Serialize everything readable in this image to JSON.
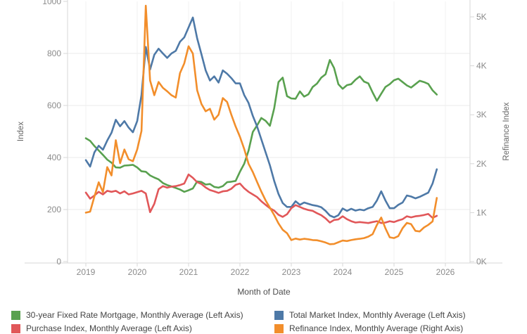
{
  "chart_data": {
    "type": "line",
    "title": "",
    "xlabel": "Month of Date",
    "x_start": "2019-01",
    "x_end": "2025-11",
    "x_interval": "monthly",
    "x_ticks": [
      "2019",
      "2020",
      "2021",
      "2022",
      "2023",
      "2024",
      "2025",
      "2026"
    ],
    "grid": true,
    "legend_position": "bottom",
    "left_axis": {
      "label": "Index",
      "range": [
        0,
        1000
      ],
      "ticks": [
        "0",
        "200",
        "400",
        "600",
        "800",
        "1000"
      ],
      "tick_values": [
        0,
        200,
        400,
        600,
        800,
        1000
      ]
    },
    "right_axis": {
      "label": "Refinance Index",
      "range": [
        0,
        5316
      ],
      "ticks": [
        "0K",
        "1K",
        "2K",
        "3K",
        "4K",
        "5K"
      ],
      "tick_values": [
        0,
        1000,
        2000,
        3000,
        4000,
        5000
      ]
    },
    "series": [
      {
        "name": "30-year Fixed Rate Mortgage, Monthly Average (Left Axis)",
        "color": "#59A14F",
        "axis": "left",
        "values": [
          474,
          464,
          444,
          427,
          410,
          392,
          380,
          362,
          361,
          369,
          370,
          372,
          362,
          347,
          345,
          331,
          323,
          316,
          302,
          294,
          289,
          283,
          277,
          268,
          274,
          281,
          308,
          306,
          296,
          298,
          287,
          284,
          290,
          305,
          307,
          310,
          345,
          376,
          426,
          498,
          523,
          552,
          541,
          522,
          589,
          690,
          707,
          636,
          627,
          626,
          654,
          634,
          643,
          671,
          684,
          707,
          720,
          775,
          744,
          682,
          664,
          678,
          682,
          699,
          712,
          692,
          685,
          650,
          618,
          645,
          671,
          682,
          697,
          703,
          690,
          677,
          669,
          682,
          695,
          690,
          683,
          658,
          642
        ]
      },
      {
        "name": "Total Market Index, Monthly Average (Left Axis)",
        "color": "#4E79A7",
        "axis": "left",
        "values": [
          390,
          365,
          420,
          445,
          430,
          465,
          495,
          545,
          520,
          540,
          515,
          497,
          540,
          640,
          825,
          738,
          795,
          818,
          800,
          783,
          800,
          810,
          845,
          862,
          900,
          938,
          858,
          797,
          735,
          696,
          712,
          688,
          735,
          722,
          705,
          685,
          685,
          640,
          610,
          560,
          520,
          470,
          420,
          370,
          310,
          260,
          225,
          210,
          210,
          232,
          218,
          227,
          222,
          217,
          214,
          209,
          195,
          177,
          170,
          178,
          204,
          195,
          203,
          196,
          200,
          197,
          205,
          210,
          235,
          270,
          235,
          205,
          205,
          218,
          227,
          254,
          250,
          243,
          249,
          257,
          265,
          300,
          355
        ]
      },
      {
        "name": "Purchase Index, Monthly Average (Left Axis)",
        "color": "#E15759",
        "axis": "left",
        "values": [
          265,
          242,
          254,
          268,
          258,
          272,
          268,
          272,
          262,
          270,
          258,
          262,
          267,
          272,
          262,
          190,
          222,
          278,
          290,
          284,
          288,
          290,
          294,
          300,
          335,
          322,
          305,
          298,
          285,
          275,
          270,
          264,
          270,
          272,
          280,
          295,
          300,
          282,
          268,
          258,
          248,
          232,
          218,
          205,
          196,
          180,
          172,
          182,
          205,
          217,
          210,
          203,
          198,
          195,
          186,
          178,
          166,
          150,
          160,
          162,
          174,
          163,
          155,
          150,
          152,
          150,
          148,
          152,
          155,
          148,
          150,
          155,
          152,
          158,
          163,
          174,
          170,
          174,
          176,
          179,
          183,
          168,
          176
        ]
      },
      {
        "name": "Refinance Index, Monthly Average (Right Axis)",
        "color": "#F28E2B",
        "axis": "right",
        "values": [
          1000,
          1020,
          1330,
          1620,
          1420,
          1930,
          1760,
          2480,
          2010,
          2290,
          2090,
          2050,
          2290,
          2670,
          5230,
          3700,
          3400,
          3670,
          3550,
          3480,
          3400,
          3350,
          3850,
          4050,
          4400,
          4250,
          3500,
          3220,
          3070,
          3120,
          2900,
          3000,
          3340,
          3260,
          3000,
          2760,
          2550,
          2300,
          2000,
          1830,
          1630,
          1430,
          1250,
          1100,
          950,
          780,
          650,
          580,
          440,
          470,
          450,
          465,
          455,
          440,
          435,
          415,
          390,
          355,
          360,
          395,
          430,
          420,
          440,
          455,
          465,
          480,
          510,
          560,
          750,
          900,
          680,
          495,
          480,
          520,
          683,
          790,
          765,
          628,
          615,
          697,
          750,
          820,
          1300
        ]
      }
    ]
  },
  "legend": {
    "items": [
      {
        "label": "30-year Fixed Rate Mortgage, Monthly Average (Left Axis)"
      },
      {
        "label": "Total Market Index, Monthly Average (Left Axis)"
      },
      {
        "label": "Purchase Index, Monthly Average (Left Axis)"
      },
      {
        "label": "Refinance Index, Monthly Average (Right Axis)"
      }
    ]
  }
}
